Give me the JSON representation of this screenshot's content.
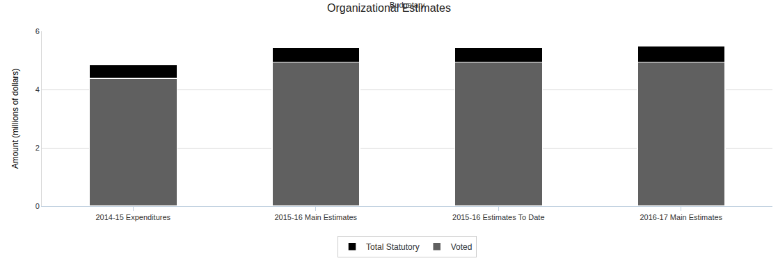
{
  "chart_data": {
    "type": "bar",
    "title": "Organizational Estimates",
    "subtitle": "Budgetary",
    "y_label": "Amount (millions of dollars)",
    "categories": [
      "2014-15 Expenditures",
      "2015-16 Main Estimates",
      "2015-16 Estimates To Date",
      "2016-17 Main Estimates"
    ],
    "series": [
      {
        "name": "Voted",
        "color": "#606060",
        "values": [
          4.38,
          4.94,
          4.94,
          4.94
        ]
      },
      {
        "name": "Total Statutory",
        "color": "#000000",
        "values": [
          0.48,
          0.5,
          0.5,
          0.55
        ]
      }
    ],
    "stacked": true,
    "ylim": [
      0,
      6
    ],
    "yticks": [
      0,
      2,
      4,
      6
    ],
    "grid": true,
    "legend": "bottom"
  }
}
